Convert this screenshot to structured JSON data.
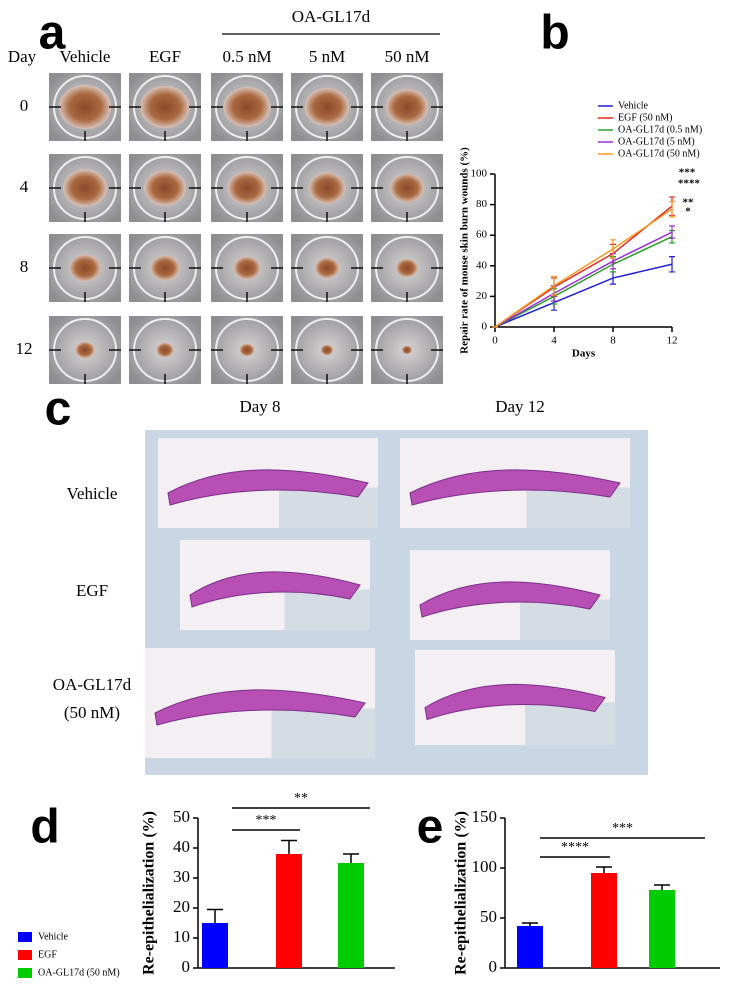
{
  "panel_a": {
    "label": "a",
    "day_header": "Day",
    "group_label": "OA-GL17d",
    "columns": [
      "Vehicle",
      "EGF",
      "0.5 nM",
      "5 nM",
      "50 nM"
    ],
    "days": [
      0,
      4,
      8,
      12
    ]
  },
  "panel_c": {
    "label": "c",
    "columns": [
      "Day 8",
      "Day 12"
    ],
    "rows": [
      [
        "Vehicle"
      ],
      [
        "EGF"
      ],
      [
        "OA-GL17d",
        "(50 nM)"
      ]
    ]
  },
  "chart_data": [
    {
      "type": "line",
      "panel_label": "b",
      "x_label": "Days",
      "y_label": "Repair rate of mouse skin burn wounds (%)",
      "x": [
        0,
        4,
        8,
        12
      ],
      "xlim": [
        0,
        12
      ],
      "xticks": [
        0,
        4,
        8,
        12
      ],
      "ylim": [
        0,
        100
      ],
      "yticks": [
        0,
        20,
        40,
        60,
        80,
        100
      ],
      "series": [
        {
          "name": "Vehicle",
          "color": "#1f1fd6",
          "values": [
            0,
            16,
            32,
            41
          ],
          "errors": [
            0,
            5,
            4,
            5
          ]
        },
        {
          "name": "EGF (50 nM)",
          "color": "#e8271e",
          "values": [
            0,
            26,
            48,
            79
          ],
          "errors": [
            0,
            6,
            6,
            6
          ]
        },
        {
          "name": "OA-GL17d (0.5 nM)",
          "color": "#2ca02c",
          "values": [
            0,
            20,
            41,
            59
          ],
          "errors": [
            0,
            5,
            5,
            4
          ]
        },
        {
          "name": "OA-GL17d (5 nM)",
          "color": "#9b30d9",
          "values": [
            0,
            22,
            43,
            62
          ],
          "errors": [
            0,
            5,
            5,
            4
          ]
        },
        {
          "name": "OA-GL17d (50 nM)",
          "color": "#f39a1e",
          "values": [
            0,
            27,
            51,
            77
          ],
          "errors": [
            0,
            6,
            6,
            5
          ]
        }
      ],
      "annotations": [
        "***",
        "****",
        "**",
        "*"
      ]
    },
    {
      "type": "bar",
      "panel_label": "d",
      "y_label": "Re-epithelialization (%)",
      "categories": [
        "Vehicle",
        "EGF",
        "OA-GL17d (50 nM)"
      ],
      "colors": [
        "#0000ff",
        "#ff0000",
        "#00cc00"
      ],
      "values": [
        15,
        38,
        35
      ],
      "errors": [
        4.5,
        4.5,
        3
      ],
      "ylim": [
        0,
        50
      ],
      "yticks": [
        0,
        10,
        20,
        30,
        40,
        50
      ],
      "annotations": [
        "***",
        "**"
      ]
    },
    {
      "type": "bar",
      "panel_label": "e",
      "y_label": "Re-epithelialization (%)",
      "colors": [
        "#0000ff",
        "#ff0000",
        "#00cc00"
      ],
      "values": [
        42,
        95,
        78
      ],
      "errors": [
        3,
        6,
        5
      ],
      "ylim": [
        0,
        150
      ],
      "yticks": [
        0,
        50,
        100,
        150
      ],
      "annotations": [
        "****",
        "***"
      ]
    }
  ]
}
